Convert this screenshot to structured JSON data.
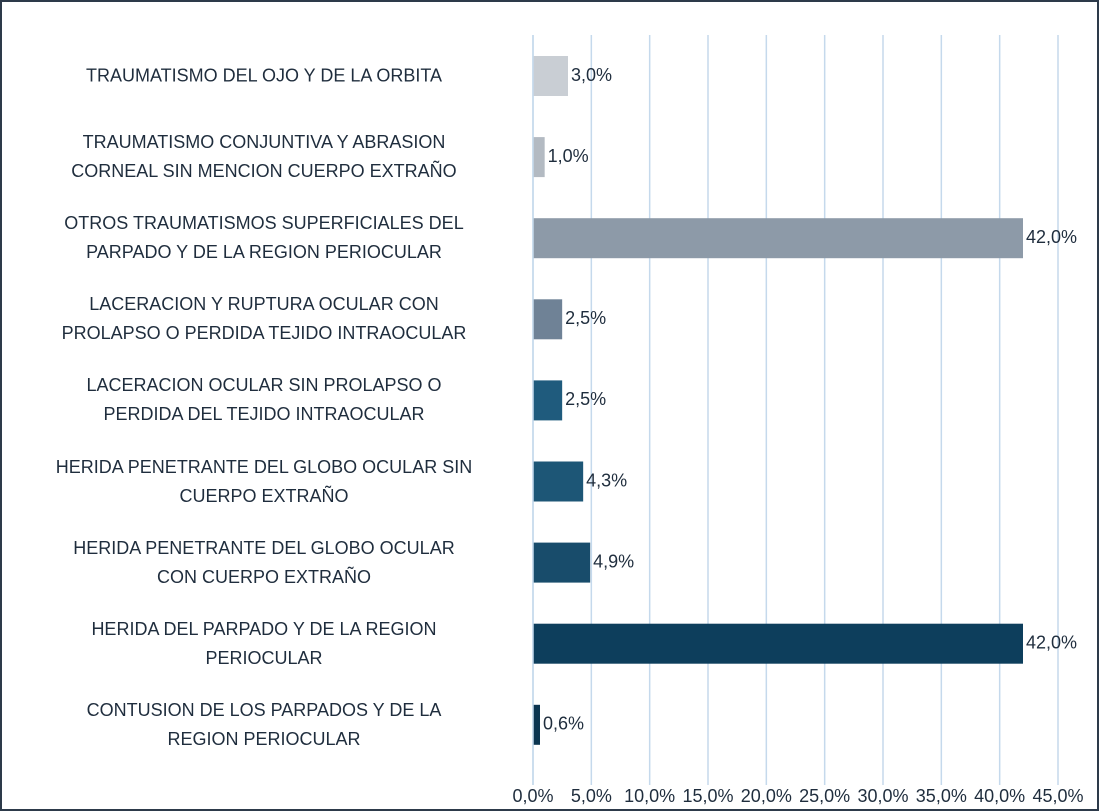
{
  "chart_data": {
    "type": "hbar",
    "categories": [
      "TRAUMATISMO DEL OJO Y DE LA ORBITA",
      "TRAUMATISMO CONJUNTIVA Y ABRASION\nCORNEAL SIN MENCION CUERPO EXTRAÑO",
      "OTROS TRAUMATISMOS SUPERFICIALES DEL\nPARPADO Y DE LA REGION PERIOCULAR",
      "LACERACION Y RUPTURA OCULAR CON\nPROLAPSO O PERDIDA TEJIDO INTRAOCULAR",
      "LACERACION OCULAR SIN PROLAPSO O\nPERDIDA DEL TEJIDO INTRAOCULAR",
      "HERIDA PENETRANTE DEL GLOBO OCULAR SIN\nCUERPO EXTRAÑO",
      "HERIDA PENETRANTE DEL GLOBO OCULAR\nCON CUERPO EXTRAÑO",
      "HERIDA DEL PARPADO Y DE LA REGION\nPERIOCULAR",
      "CONTUSION DE LOS PARPADOS Y DE LA\nREGION PERIOCULAR"
    ],
    "values": [
      3.0,
      1.0,
      42.0,
      2.5,
      2.5,
      4.3,
      4.9,
      42.0,
      0.6
    ],
    "value_labels": [
      "3,0%",
      "1,0%",
      "42,0%",
      "2,5%",
      "2,5%",
      "4,3%",
      "4,9%",
      "42,0%",
      "0,6%"
    ],
    "colors": [
      "#c9ced4",
      "#b3bac2",
      "#8d9aa8",
      "#6f8296",
      "#1f5b7d",
      "#1d5676",
      "#184c6b",
      "#0d3e5c",
      "#0b3550"
    ],
    "xlim": [
      0,
      45
    ],
    "xticks": [
      {
        "value": 0,
        "label": "0,0%"
      },
      {
        "value": 5,
        "label": "5,0%"
      },
      {
        "value": 10,
        "label": "10,0%"
      },
      {
        "value": 15,
        "label": "15,0%"
      },
      {
        "value": 20,
        "label": "20,0%"
      },
      {
        "value": 25,
        "label": "25,0%"
      },
      {
        "value": 30,
        "label": "30,0%"
      },
      {
        "value": 35,
        "label": "35,0%"
      },
      {
        "value": 40,
        "label": "40,0%"
      },
      {
        "value": 45,
        "label": "45,0%"
      }
    ],
    "grid": true
  }
}
